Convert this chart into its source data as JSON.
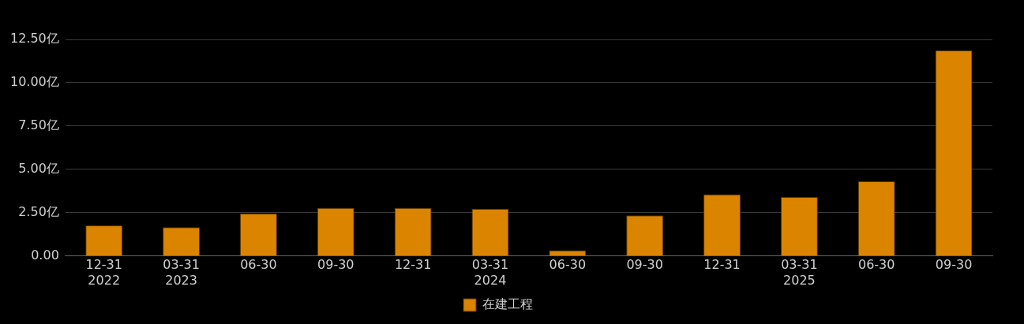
{
  "chart_data": {
    "type": "bar",
    "categories": [
      "12-31\n2022",
      "03-31\n2023",
      "06-30",
      "09-30",
      "12-31",
      "03-31\n2024",
      "06-30",
      "09-30",
      "12-31",
      "03-31\n2025",
      "06-30",
      "09-30"
    ],
    "series": [
      {
        "name": "在建工程",
        "color": "#db8400",
        "values": [
          1.76,
          1.65,
          2.45,
          2.77,
          2.77,
          2.71,
          0.32,
          2.34,
          3.56,
          3.4,
          4.31,
          11.86
        ]
      }
    ],
    "ylim": [
      0,
      12.5
    ],
    "yticks": [
      {
        "value": 0,
        "label": "0.00"
      },
      {
        "value": 2.5,
        "label": "2.50亿"
      },
      {
        "value": 5,
        "label": "5.00亿"
      },
      {
        "value": 7.5,
        "label": "7.50亿"
      },
      {
        "value": 10,
        "label": "10.00亿"
      },
      {
        "value": 12.5,
        "label": "12.50亿"
      }
    ],
    "grid": "y",
    "legend": "bottom"
  }
}
